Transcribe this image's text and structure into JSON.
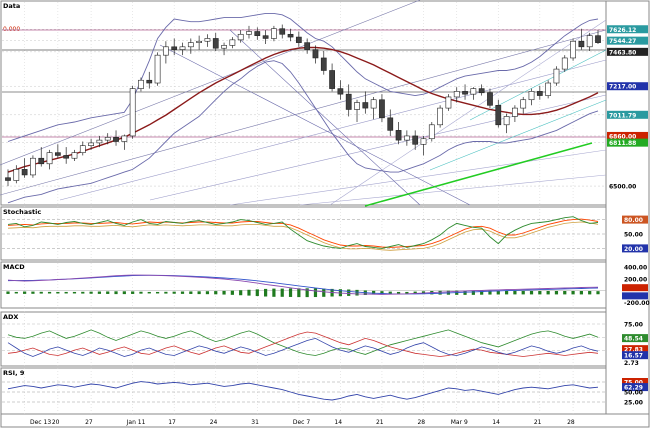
{
  "panels": {
    "price_title": "Data",
    "stoch_title": "Stochastic",
    "macd_title": "MACD",
    "adx_title": "ADX",
    "rsi_title": "RSI, 9"
  },
  "price_axis_labels": [
    "7626.12",
    "7544.27",
    "7463.80",
    "7217.00",
    "7011.79",
    "6860.00",
    "6811.88",
    "6500.00"
  ],
  "top_left_value": "0.000",
  "stoch_axis_labels": [
    "80.00",
    "50.00",
    "20.00"
  ],
  "macd_axis_labels": [
    "400.00",
    "200.00",
    "-200.00"
  ],
  "adx_axis_labels": [
    "75.00",
    "48.54",
    "27.83",
    "16.57",
    "2.73"
  ],
  "rsi_axis_labels": [
    "75.00",
    "62.29",
    "50.00",
    "25.00"
  ],
  "x_labels": [
    "Dec 13",
    "20",
    "27",
    "Jan 11",
    "17",
    "24",
    "31",
    "Dec 7",
    "14",
    "21",
    "28",
    "Mar 9",
    "14",
    "21",
    "28"
  ],
  "colors": {
    "candle_up": "#ffffff",
    "candle_down": "#404040",
    "bollinger": "#6a6aaa",
    "ma": "#8b1a1a",
    "trend_green": "#22cc22",
    "stoch_k": "#2e8b2e",
    "stoch_d": "#ff4500",
    "macd_line": "#8b4ab0",
    "macd_signal": "#3355cc",
    "macd_hist": "#1f7a1f",
    "rsi_line": "#3344aa",
    "label_red": "#cc2200",
    "label_blue": "#2233aa",
    "label_teal": "#2a9aa0",
    "label_green": "#22aa22"
  },
  "chart_data": {
    "type": "candlestick",
    "y_range": [
      6400,
      7750
    ],
    "candles": [
      [
        6560,
        6620,
        6500,
        6540
      ],
      [
        6540,
        6650,
        6520,
        6620
      ],
      [
        6620,
        6700,
        6560,
        6580
      ],
      [
        6580,
        6720,
        6560,
        6700
      ],
      [
        6700,
        6780,
        6640,
        6660
      ],
      [
        6660,
        6760,
        6620,
        6740
      ],
      [
        6740,
        6800,
        6700,
        6720
      ],
      [
        6720,
        6780,
        6660,
        6700
      ],
      [
        6700,
        6760,
        6680,
        6740
      ],
      [
        6740,
        6820,
        6720,
        6790
      ],
      [
        6790,
        6840,
        6760,
        6810
      ],
      [
        6810,
        6860,
        6780,
        6830
      ],
      [
        6830,
        6880,
        6800,
        6850
      ],
      [
        6850,
        6900,
        6790,
        6820
      ],
      [
        6820,
        6870,
        6760,
        6860
      ],
      [
        6860,
        7220,
        6840,
        7200
      ],
      [
        7200,
        7280,
        7180,
        7260
      ],
      [
        7260,
        7320,
        7200,
        7240
      ],
      [
        7240,
        7460,
        7220,
        7440
      ],
      [
        7440,
        7540,
        7380,
        7500
      ],
      [
        7500,
        7560,
        7440,
        7480
      ],
      [
        7480,
        7530,
        7440,
        7500
      ],
      [
        7500,
        7560,
        7450,
        7530
      ],
      [
        7530,
        7580,
        7480,
        7540
      ],
      [
        7540,
        7590,
        7500,
        7560
      ],
      [
        7560,
        7600,
        7470,
        7490
      ],
      [
        7490,
        7530,
        7440,
        7510
      ],
      [
        7510,
        7570,
        7490,
        7550
      ],
      [
        7550,
        7620,
        7530,
        7590
      ],
      [
        7590,
        7650,
        7560,
        7610
      ],
      [
        7610,
        7640,
        7550,
        7580
      ],
      [
        7580,
        7620,
        7520,
        7560
      ],
      [
        7560,
        7650,
        7540,
        7630
      ],
      [
        7630,
        7660,
        7560,
        7590
      ],
      [
        7590,
        7630,
        7540,
        7570
      ],
      [
        7570,
        7610,
        7500,
        7530
      ],
      [
        7530,
        7560,
        7450,
        7480
      ],
      [
        7480,
        7510,
        7380,
        7420
      ],
      [
        7420,
        7470,
        7300,
        7330
      ],
      [
        7330,
        7380,
        7180,
        7200
      ],
      [
        7200,
        7260,
        7120,
        7160
      ],
      [
        7160,
        7230,
        7000,
        7050
      ],
      [
        7050,
        7120,
        6960,
        7100
      ],
      [
        7100,
        7180,
        7020,
        7060
      ],
      [
        7060,
        7140,
        6980,
        7120
      ],
      [
        7120,
        7160,
        6960,
        6990
      ],
      [
        6990,
        7050,
        6860,
        6900
      ],
      [
        6900,
        6960,
        6800,
        6830
      ],
      [
        6830,
        6900,
        6790,
        6860
      ],
      [
        6860,
        6900,
        6760,
        6800
      ],
      [
        6800,
        6860,
        6720,
        6840
      ],
      [
        6840,
        6960,
        6820,
        6940
      ],
      [
        6940,
        7080,
        6920,
        7060
      ],
      [
        7060,
        7160,
        7040,
        7140
      ],
      [
        7140,
        7210,
        7100,
        7180
      ],
      [
        7180,
        7230,
        7120,
        7160
      ],
      [
        7160,
        7210,
        7120,
        7200
      ],
      [
        7200,
        7230,
        7150,
        7170
      ],
      [
        7170,
        7200,
        7060,
        7080
      ],
      [
        7080,
        7120,
        6920,
        6940
      ],
      [
        6940,
        7020,
        6880,
        7000
      ],
      [
        7000,
        7080,
        6960,
        7060
      ],
      [
        7060,
        7140,
        7020,
        7120
      ],
      [
        7120,
        7200,
        7080,
        7180
      ],
      [
        7180,
        7220,
        7120,
        7150
      ],
      [
        7150,
        7260,
        7130,
        7240
      ],
      [
        7240,
        7360,
        7220,
        7340
      ],
      [
        7340,
        7440,
        7320,
        7420
      ],
      [
        7420,
        7560,
        7400,
        7540
      ],
      [
        7540,
        7630,
        7480,
        7500
      ],
      [
        7500,
        7600,
        7470,
        7580
      ],
      [
        7580,
        7620,
        7520,
        7530
      ]
    ],
    "moving_average": [
      6600,
      6620,
      6640,
      6655,
      6670,
      6685,
      6700,
      6715,
      6730,
      6750,
      6770,
      6790,
      6810,
      6830,
      6850,
      6880,
      6910,
      6940,
      6975,
      7010,
      7050,
      7090,
      7130,
      7170,
      7205,
      7240,
      7270,
      7300,
      7330,
      7360,
      7390,
      7420,
      7445,
      7465,
      7480,
      7490,
      7495,
      7495,
      7490,
      7480,
      7465,
      7445,
      7420,
      7395,
      7370,
      7340,
      7310,
      7280,
      7250,
      7220,
      7190,
      7165,
      7145,
      7125,
      7110,
      7095,
      7080,
      7065,
      7050,
      7040,
      7030,
      7020,
      7015,
      7015,
      7020,
      7030,
      7045,
      7065,
      7090,
      7115,
      7140,
      7170
    ],
    "bollinger_upper": [
      6820,
      6840,
      6860,
      6880,
      6900,
      6920,
      6940,
      6950,
      6960,
      6975,
      6990,
      7000,
      7010,
      7020,
      7030,
      7120,
      7260,
      7400,
      7560,
      7640,
      7700,
      7690,
      7680,
      7680,
      7690,
      7700,
      7710,
      7710,
      7710,
      7720,
      7730,
      7740,
      7740,
      7730,
      7700,
      7650,
      7600,
      7560,
      7540,
      7500,
      7440,
      7380,
      7320,
      7270,
      7240,
      7210,
      7180,
      7170,
      7160,
      7150,
      7160,
      7180,
      7210,
      7240,
      7270,
      7290,
      7300,
      7310,
      7320,
      7330,
      7330,
      7340,
      7360,
      7390,
      7430,
      7480,
      7530,
      7580,
      7620,
      7660,
      7690,
      7700
    ],
    "bollinger_lower": [
      6380,
      6400,
      6420,
      6430,
      6440,
      6460,
      6480,
      6490,
      6500,
      6510,
      6520,
      6540,
      6560,
      6580,
      6600,
      6620,
      6660,
      6700,
      6760,
      6820,
      6880,
      6920,
      6960,
      7000,
      7060,
      7120,
      7180,
      7230,
      7270,
      7320,
      7360,
      7390,
      7400,
      7380,
      7320,
      7240,
      7150,
      7060,
      6970,
      6880,
      6800,
      6720,
      6660,
      6630,
      6620,
      6610,
      6600,
      6600,
      6620,
      6640,
      6660,
      6690,
      6720,
      6760,
      6790,
      6810,
      6820,
      6820,
      6820,
      6810,
      6810,
      6820,
      6830,
      6840,
      6860,
      6880,
      6900,
      6930,
      6960,
      6990,
      7020,
      7040
    ],
    "stochastic_k": [
      70,
      72,
      65,
      68,
      75,
      73,
      70,
      74,
      76,
      72,
      70,
      74,
      78,
      72,
      68,
      75,
      80,
      72,
      70,
      76,
      74,
      72,
      76,
      78,
      74,
      70,
      72,
      75,
      80,
      78,
      74,
      70,
      72,
      75,
      60,
      48,
      36,
      30,
      25,
      22,
      20,
      26,
      30,
      24,
      22,
      20,
      24,
      28,
      22,
      26,
      30,
      38,
      48,
      62,
      72,
      68,
      64,
      62,
      44,
      30,
      48,
      58,
      66,
      72,
      74,
      76,
      80,
      84,
      86,
      78,
      72,
      74
    ],
    "stochastic_d": [
      68,
      69,
      70,
      69,
      71,
      72,
      72,
      72,
      73,
      73,
      72,
      72,
      73,
      74,
      72,
      71,
      73,
      75,
      74,
      75,
      74,
      73,
      74,
      75,
      75,
      74,
      73,
      73,
      75,
      76,
      76,
      74,
      72,
      72,
      69,
      62,
      54,
      46,
      38,
      32,
      27,
      25,
      25,
      26,
      25,
      23,
      22,
      23,
      24,
      25,
      26,
      30,
      36,
      44,
      52,
      60,
      65,
      66,
      62,
      54,
      48,
      48,
      52,
      58,
      64,
      70,
      74,
      78,
      80,
      81,
      79,
      76
    ],
    "macd": [
      180,
      170,
      165,
      168,
      175,
      180,
      190,
      195,
      205,
      215,
      225,
      235,
      245,
      255,
      262,
      266,
      266,
      264,
      260,
      255,
      250,
      243,
      236,
      228,
      220,
      210,
      198,
      184,
      168,
      150,
      130,
      108,
      88,
      70,
      50,
      30,
      12,
      -5,
      -18,
      -30,
      -40,
      -48,
      -55,
      -58,
      -60,
      -62,
      -60,
      -56,
      -52,
      -46,
      -40,
      -32,
      -25,
      -18,
      -10,
      -4,
      2,
      6,
      10,
      14,
      18,
      22,
      26,
      30,
      34,
      38,
      42,
      46,
      50,
      54,
      58,
      60
    ],
    "macd_signal": [
      170,
      172,
      174,
      176,
      180,
      184,
      190,
      196,
      203,
      210,
      218,
      226,
      235,
      243,
      250,
      256,
      260,
      262,
      262,
      260,
      257,
      252,
      246,
      240,
      233,
      225,
      216,
      206,
      195,
      182,
      168,
      152,
      136,
      118,
      100,
      82,
      64,
      46,
      30,
      14,
      0,
      -12,
      -24,
      -34,
      -42,
      -48,
      -52,
      -54,
      -55,
      -54,
      -52,
      -48,
      -44,
      -38,
      -32,
      -26,
      -20,
      -14,
      -8,
      -3,
      2,
      6,
      10,
      14,
      18,
      22,
      26,
      30,
      34,
      38,
      42,
      46
    ],
    "adx": [
      40,
      30,
      20,
      14,
      20,
      28,
      32,
      26,
      20,
      16,
      22,
      30,
      26,
      20,
      14,
      18,
      26,
      30,
      24,
      18,
      16,
      22,
      28,
      34,
      30,
      24,
      20,
      26,
      32,
      28,
      22,
      16,
      20,
      26,
      32,
      38,
      44,
      48,
      40,
      32,
      26,
      22,
      28,
      34,
      30,
      24,
      18,
      22,
      30,
      36,
      40,
      32,
      24,
      18,
      16,
      20,
      26,
      32,
      28,
      22,
      18,
      22,
      28,
      34,
      30,
      24,
      20,
      24,
      30,
      34,
      28,
      24
    ],
    "adx_plus": [
      55,
      50,
      48,
      52,
      58,
      62,
      55,
      48,
      52,
      58,
      64,
      58,
      50,
      44,
      50,
      56,
      62,
      58,
      52,
      48,
      52,
      58,
      62,
      56,
      48,
      42,
      46,
      52,
      58,
      62,
      56,
      48,
      40,
      34,
      28,
      22,
      18,
      16,
      20,
      26,
      30,
      28,
      22,
      18,
      24,
      30,
      36,
      40,
      44,
      48,
      52,
      56,
      60,
      64,
      58,
      52,
      46,
      40,
      36,
      32,
      38,
      44,
      50,
      56,
      60,
      62,
      58,
      52,
      48,
      52,
      56,
      50
    ],
    "adx_minus": [
      20,
      22,
      26,
      30,
      24,
      18,
      16,
      20,
      26,
      30,
      24,
      18,
      22,
      28,
      32,
      26,
      20,
      18,
      24,
      30,
      34,
      28,
      22,
      18,
      24,
      30,
      34,
      28,
      22,
      20,
      26,
      32,
      38,
      44,
      50,
      56,
      60,
      58,
      52,
      46,
      40,
      36,
      42,
      48,
      44,
      38,
      32,
      28,
      24,
      20,
      18,
      16,
      14,
      16,
      20,
      24,
      28,
      26,
      22,
      20,
      18,
      16,
      14,
      16,
      18,
      20,
      18,
      16,
      18,
      20,
      22,
      20
    ],
    "rsi": [
      58,
      62,
      66,
      64,
      60,
      64,
      68,
      66,
      62,
      66,
      70,
      68,
      64,
      60,
      66,
      72,
      76,
      74,
      70,
      72,
      74,
      72,
      68,
      70,
      72,
      68,
      64,
      66,
      70,
      72,
      68,
      64,
      60,
      56,
      50,
      44,
      40,
      36,
      32,
      30,
      34,
      40,
      44,
      38,
      34,
      38,
      42,
      36,
      32,
      36,
      42,
      48,
      54,
      60,
      58,
      54,
      56,
      52,
      48,
      44,
      50,
      56,
      60,
      62,
      60,
      58,
      62,
      66,
      68,
      64,
      60,
      62
    ]
  }
}
